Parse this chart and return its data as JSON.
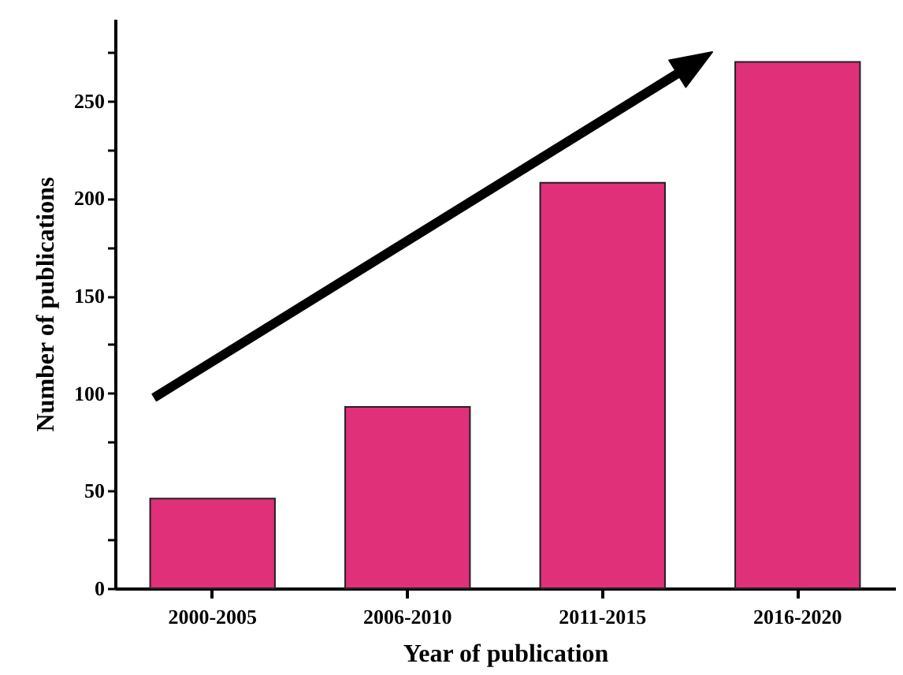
{
  "chart_data": {
    "type": "bar",
    "xlabel": "Year of publication",
    "ylabel": "Number of publications",
    "categories": [
      "2000-2005",
      "2006-2010",
      "2011-2015",
      "2016-2020"
    ],
    "values": [
      46,
      93,
      208,
      270
    ],
    "color": "#e0307a",
    "ylim": [
      0,
      292
    ],
    "yticks": [
      0,
      {
        "value": 25,
        "label": null
      },
      50,
      {
        "value": 75,
        "label": null
      },
      100,
      {
        "value": 125,
        "label": null
      },
      150,
      {
        "value": 175,
        "label": null
      },
      200,
      {
        "value": 225,
        "label": null
      },
      250,
      {
        "value": 275,
        "label": null
      }
    ]
  }
}
